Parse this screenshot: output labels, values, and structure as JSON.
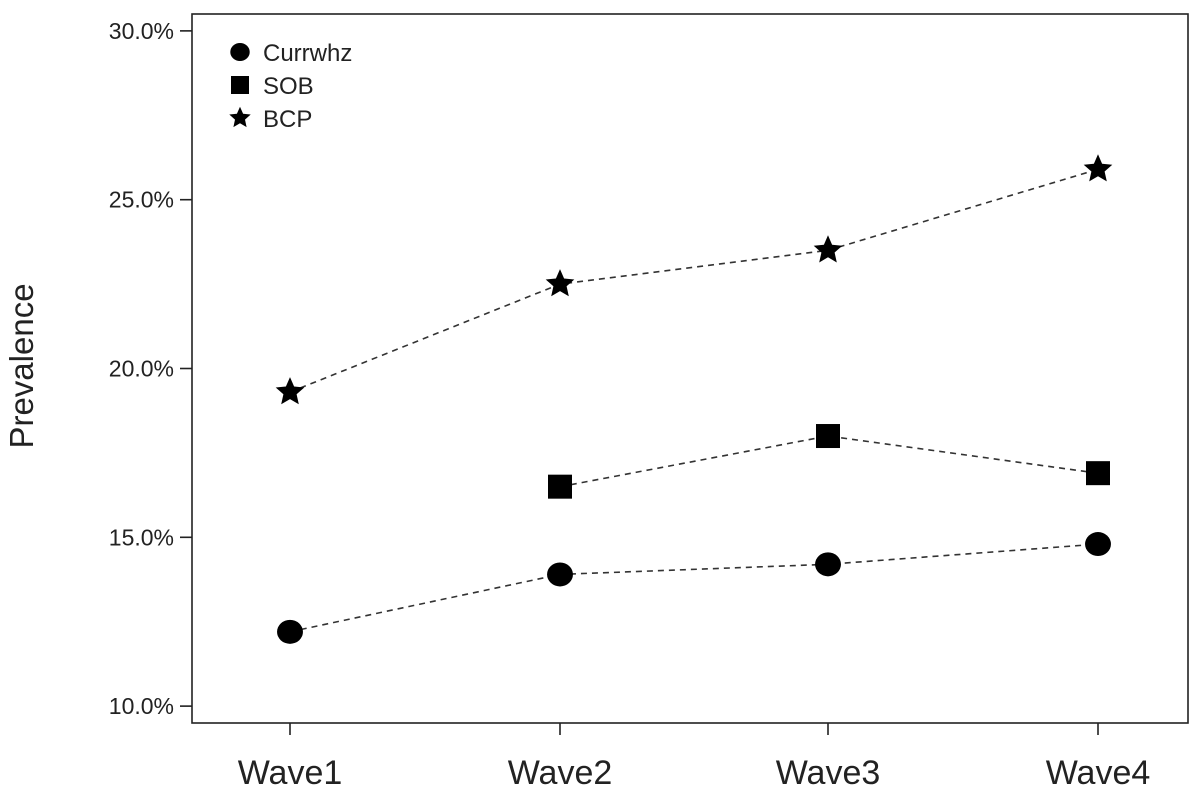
{
  "chart_data": {
    "type": "line",
    "title": "",
    "xlabel": "",
    "ylabel": "Prevalence",
    "categories": [
      "Wave1",
      "Wave2",
      "Wave3",
      "Wave4"
    ],
    "ylim": [
      0.095,
      0.305
    ],
    "yticks": [
      0.1,
      0.15,
      0.2,
      0.25,
      0.3
    ],
    "ytick_labels": [
      "10.0%",
      "15.0%",
      "20.0%",
      "25.0%",
      "30.0%"
    ],
    "grid": false,
    "legend_position": "top-left",
    "series": [
      {
        "name": "Currwhz",
        "marker": "circle",
        "values": [
          0.122,
          0.139,
          0.142,
          0.148
        ]
      },
      {
        "name": "SOB",
        "marker": "square",
        "values": [
          null,
          0.165,
          0.18,
          0.169
        ]
      },
      {
        "name": "BCP",
        "marker": "star",
        "values": [
          0.193,
          0.225,
          0.235,
          0.259
        ]
      }
    ],
    "colors": {
      "markers": "#000000",
      "lines": "#333333",
      "axes": "#222222"
    }
  }
}
